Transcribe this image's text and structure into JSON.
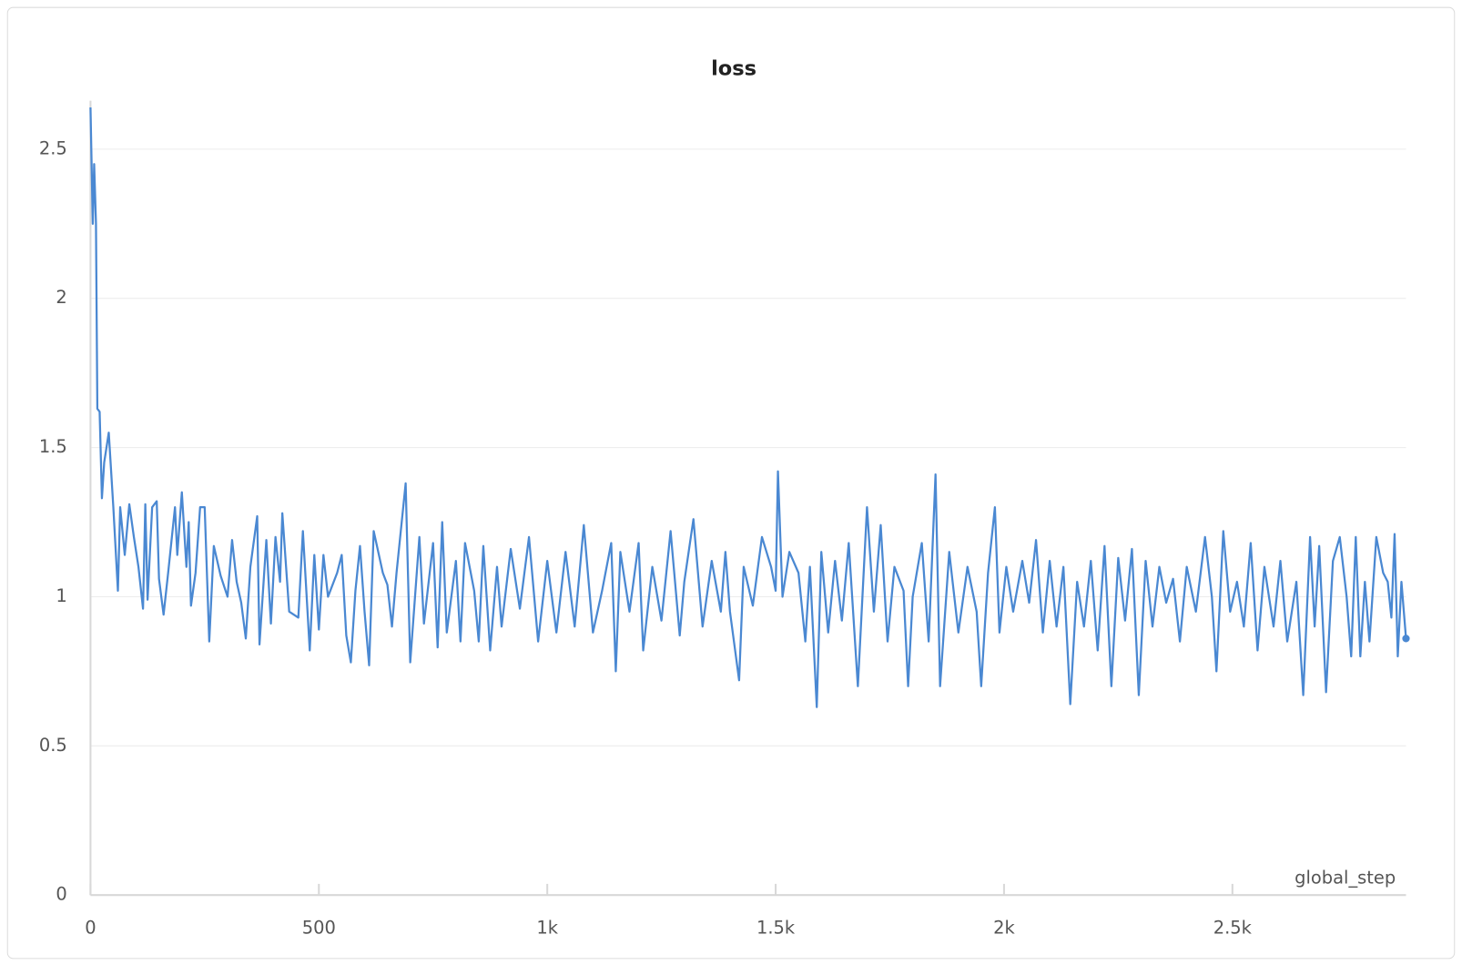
{
  "chart_data": {
    "type": "line",
    "title": "loss",
    "x_label": "global_step",
    "color": "#4a88d2",
    "grid": true,
    "xlim": [
      0,
      2880
    ],
    "ylim": [
      0,
      2.65
    ],
    "xticks": [
      0,
      500,
      {
        "value": 1000,
        "label": "1k"
      },
      {
        "value": 1500,
        "label": "1.5k"
      },
      {
        "value": 2000,
        "label": "2k"
      },
      {
        "value": 2500,
        "label": "2.5k"
      }
    ],
    "yticks": [
      0,
      0.5,
      1,
      1.5,
      2,
      2.5
    ],
    "x": [
      0,
      5,
      8,
      12,
      15,
      20,
      25,
      30,
      40,
      50,
      60,
      65,
      75,
      85,
      95,
      105,
      115,
      120,
      125,
      135,
      145,
      150,
      160,
      170,
      185,
      190,
      200,
      210,
      215,
      220,
      230,
      240,
      250,
      260,
      270,
      285,
      300,
      310,
      320,
      330,
      340,
      350,
      365,
      370,
      385,
      395,
      405,
      415,
      420,
      435,
      455,
      465,
      480,
      490,
      500,
      510,
      520,
      540,
      550,
      560,
      570,
      580,
      590,
      600,
      610,
      620,
      640,
      650,
      660,
      670,
      690,
      700,
      720,
      730,
      750,
      760,
      770,
      780,
      800,
      810,
      820,
      840,
      850,
      860,
      875,
      890,
      900,
      920,
      940,
      960,
      980,
      1000,
      1020,
      1040,
      1060,
      1080,
      1100,
      1120,
      1140,
      1150,
      1160,
      1180,
      1200,
      1210,
      1230,
      1250,
      1270,
      1290,
      1300,
      1320,
      1340,
      1360,
      1380,
      1390,
      1400,
      1420,
      1430,
      1450,
      1470,
      1490,
      1500,
      1505,
      1515,
      1530,
      1550,
      1565,
      1575,
      1590,
      1600,
      1615,
      1630,
      1645,
      1660,
      1680,
      1700,
      1715,
      1730,
      1745,
      1760,
      1780,
      1790,
      1800,
      1820,
      1835,
      1850,
      1860,
      1880,
      1900,
      1920,
      1940,
      1950,
      1965,
      1980,
      1990,
      2005,
      2020,
      2040,
      2055,
      2070,
      2085,
      2100,
      2115,
      2130,
      2145,
      2160,
      2175,
      2190,
      2205,
      2220,
      2235,
      2250,
      2265,
      2280,
      2295,
      2310,
      2325,
      2340,
      2355,
      2370,
      2385,
      2400,
      2420,
      2440,
      2455,
      2465,
      2480,
      2495,
      2510,
      2525,
      2540,
      2555,
      2570,
      2590,
      2605,
      2620,
      2640,
      2655,
      2670,
      2680,
      2690,
      2705,
      2720,
      2735,
      2750,
      2760,
      2770,
      2780,
      2790,
      2800,
      2815,
      2830,
      2840,
      2848,
      2855,
      2862,
      2870,
      2880
    ],
    "values": [
      2.64,
      2.25,
      2.45,
      2.25,
      1.63,
      1.62,
      1.33,
      1.45,
      1.55,
      1.3,
      1.02,
      1.3,
      1.14,
      1.31,
      1.2,
      1.1,
      0.96,
      1.31,
      0.99,
      1.3,
      1.32,
      1.06,
      0.94,
      1.08,
      1.3,
      1.14,
      1.35,
      1.1,
      1.25,
      0.97,
      1.08,
      1.3,
      1.3,
      0.85,
      1.17,
      1.07,
      1.0,
      1.19,
      1.05,
      0.98,
      0.86,
      1.1,
      1.27,
      0.84,
      1.19,
      0.91,
      1.2,
      1.05,
      1.28,
      0.95,
      0.93,
      1.22,
      0.82,
      1.14,
      0.89,
      1.14,
      1.0,
      1.08,
      1.14,
      0.87,
      0.78,
      1.02,
      1.17,
      0.95,
      0.77,
      1.22,
      1.08,
      1.04,
      0.9,
      1.08,
      1.38,
      0.78,
      1.2,
      0.91,
      1.18,
      0.83,
      1.25,
      0.88,
      1.12,
      0.85,
      1.18,
      1.02,
      0.85,
      1.17,
      0.82,
      1.1,
      0.9,
      1.16,
      0.96,
      1.2,
      0.85,
      1.12,
      0.88,
      1.15,
      0.9,
      1.24,
      0.88,
      1.02,
      1.18,
      0.75,
      1.15,
      0.95,
      1.18,
      0.82,
      1.1,
      0.92,
      1.22,
      0.87,
      1.05,
      1.26,
      0.9,
      1.12,
      0.95,
      1.15,
      0.95,
      0.72,
      1.1,
      0.97,
      1.2,
      1.1,
      1.02,
      1.42,
      1.0,
      1.15,
      1.08,
      0.85,
      1.1,
      0.63,
      1.15,
      0.88,
      1.12,
      0.92,
      1.18,
      0.7,
      1.3,
      0.95,
      1.24,
      0.85,
      1.1,
      1.02,
      0.7,
      1.0,
      1.18,
      0.85,
      1.41,
      0.7,
      1.15,
      0.88,
      1.1,
      0.95,
      0.7,
      1.08,
      1.3,
      0.88,
      1.1,
      0.95,
      1.12,
      0.98,
      1.19,
      0.88,
      1.12,
      0.9,
      1.1,
      0.64,
      1.05,
      0.9,
      1.12,
      0.82,
      1.17,
      0.7,
      1.13,
      0.92,
      1.16,
      0.67,
      1.12,
      0.9,
      1.1,
      0.98,
      1.06,
      0.85,
      1.1,
      0.95,
      1.2,
      1.0,
      0.75,
      1.22,
      0.95,
      1.05,
      0.9,
      1.18,
      0.82,
      1.1,
      0.9,
      1.12,
      0.85,
      1.05,
      0.67,
      1.2,
      0.9,
      1.17,
      0.68,
      1.12,
      1.2,
      1.0,
      0.8,
      1.2,
      0.8,
      1.05,
      0.85,
      1.2,
      1.08,
      1.05,
      0.93,
      1.21,
      0.8,
      1.05,
      0.86
    ]
  }
}
